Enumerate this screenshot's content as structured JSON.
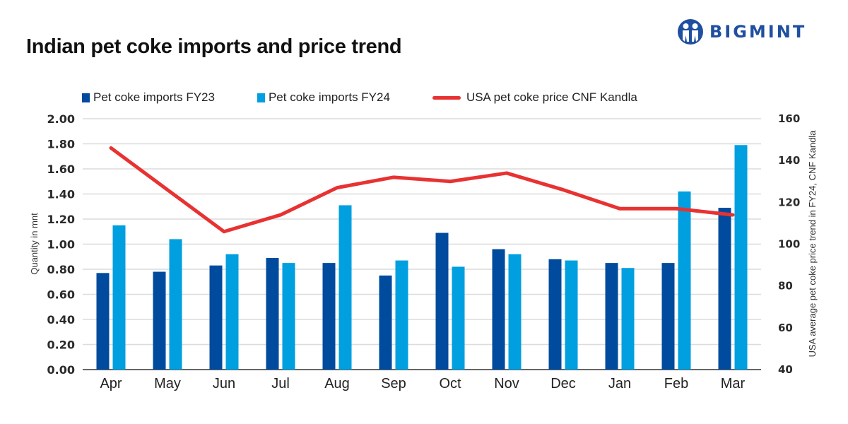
{
  "chart_data": {
    "type": "bar",
    "title": "Indian pet coke imports and price trend",
    "categories": [
      "Apr",
      "May",
      "Jun",
      "Jul",
      "Aug",
      "Sep",
      "Oct",
      "Nov",
      "Dec",
      "Jan",
      "Feb",
      "Mar"
    ],
    "series": [
      {
        "name": "Pet coke imports FY23",
        "type": "bar",
        "axis": "left",
        "color": "#004b9d",
        "values": [
          0.77,
          0.78,
          0.83,
          0.89,
          0.85,
          0.75,
          1.09,
          0.96,
          0.88,
          0.85,
          0.85,
          1.29
        ]
      },
      {
        "name": "Pet coke imports FY24",
        "type": "bar",
        "axis": "left",
        "color": "#009fdf",
        "values": [
          1.15,
          1.04,
          0.92,
          0.85,
          1.31,
          0.87,
          0.82,
          0.92,
          0.87,
          0.81,
          1.42,
          1.79
        ]
      },
      {
        "name": "USA pet coke price CNF Kandla",
        "type": "line",
        "axis": "right",
        "color": "#e83232",
        "values": [
          146,
          126,
          106,
          114,
          127,
          132,
          130,
          134,
          126,
          117,
          117,
          114
        ]
      }
    ],
    "ylabel": "Quantity in mnt",
    "ylim": [
      0,
      2.0
    ],
    "yticks": [
      "0.00",
      "0.20",
      "0.40",
      "0.60",
      "0.80",
      "1.00",
      "1.20",
      "1.40",
      "1.60",
      "1.80",
      "2.00"
    ],
    "y2label": "USA average pet coke price trend in FY24, CNF Kandla",
    "y2lim": [
      40,
      160
    ],
    "y2ticks": [
      "40",
      "60",
      "80",
      "100",
      "120",
      "140",
      "160"
    ],
    "grid": true,
    "legend_position": "top"
  },
  "brand": {
    "name": "BIGMINT",
    "color": "#1f4fa0"
  }
}
